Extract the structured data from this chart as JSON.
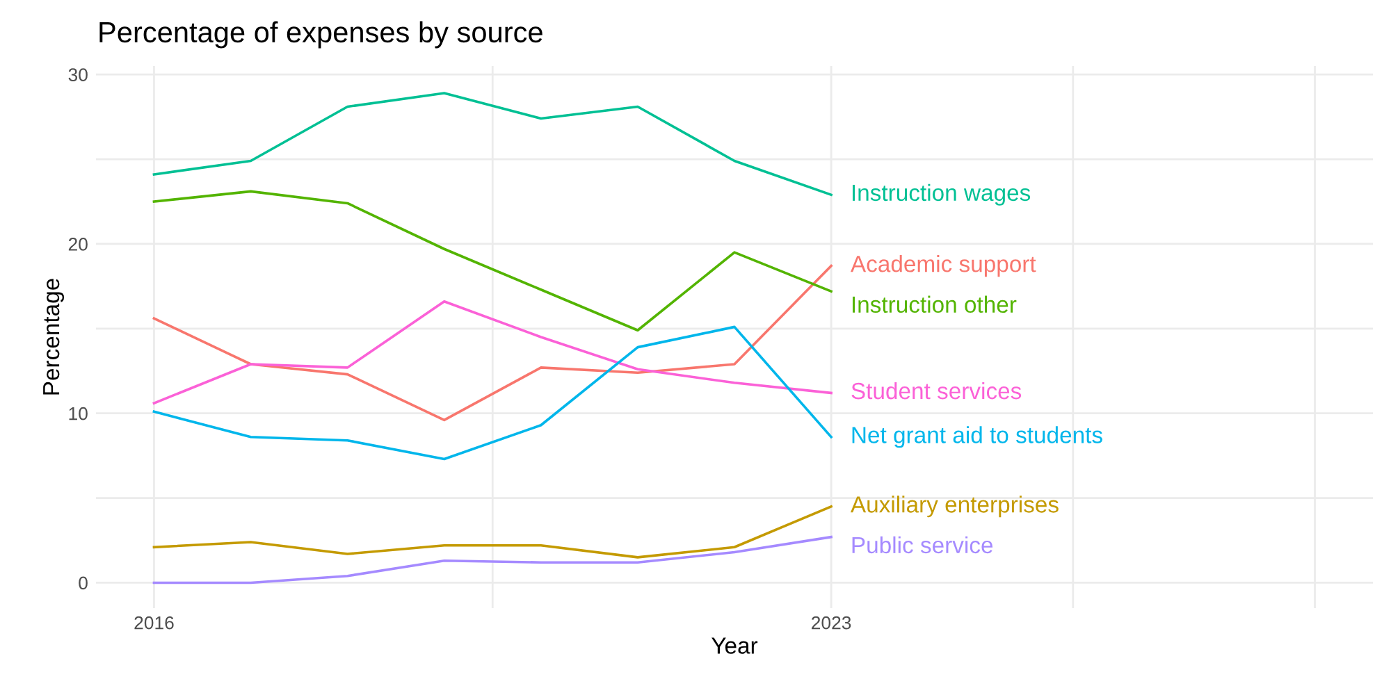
{
  "chart_data": {
    "type": "line",
    "title": "Percentage of expenses by source",
    "xlabel": "Year",
    "ylabel": "Percentage",
    "x": [
      2016,
      2017,
      2018,
      2019,
      2020,
      2021,
      2022,
      2023
    ],
    "series": [
      {
        "name": "Instruction wages",
        "color": "#00c094",
        "values": [
          24.1,
          24.9,
          28.1,
          28.9,
          27.4,
          28.1,
          24.9,
          22.9
        ]
      },
      {
        "name": "Academic support",
        "color": "#f8766d",
        "values": [
          15.6,
          12.9,
          12.3,
          9.6,
          12.7,
          12.4,
          12.9,
          18.7
        ]
      },
      {
        "name": "Instruction other",
        "color": "#53b400",
        "values": [
          22.5,
          23.1,
          22.4,
          19.7,
          17.3,
          14.9,
          19.5,
          17.2
        ]
      },
      {
        "name": "Student services",
        "color": "#fb61d7",
        "values": [
          10.6,
          12.9,
          12.7,
          16.6,
          14.5,
          12.6,
          11.8,
          11.2
        ]
      },
      {
        "name": "Net grant aid to students",
        "color": "#00b6eb",
        "values": [
          10.1,
          8.6,
          8.4,
          7.3,
          9.3,
          13.9,
          15.1,
          8.6
        ]
      },
      {
        "name": "Auxiliary enterprises",
        "color": "#c49a00",
        "values": [
          2.1,
          2.4,
          1.7,
          2.2,
          2.2,
          1.5,
          2.1,
          4.5
        ]
      },
      {
        "name": "Public service",
        "color": "#a58aff",
        "values": [
          0,
          0,
          0.4,
          1.3,
          1.2,
          1.2,
          1.8,
          2.7
        ]
      }
    ],
    "xlim": [
      2015.4,
      2028.6
    ],
    "xticks": [
      2016,
      {
        "value": 2019.5,
        "label": null
      },
      2023,
      {
        "value": 2025.5,
        "label": null
      },
      {
        "value": 2028,
        "label": null
      }
    ],
    "ylim": [
      -1.5,
      30.5
    ],
    "yticks": [
      0,
      {
        "value": 5,
        "label": null
      },
      10,
      {
        "value": 15,
        "label": null
      },
      20,
      {
        "value": 25,
        "label": null
      },
      30
    ],
    "grid": true,
    "line_style": "solid",
    "marker": "none"
  }
}
